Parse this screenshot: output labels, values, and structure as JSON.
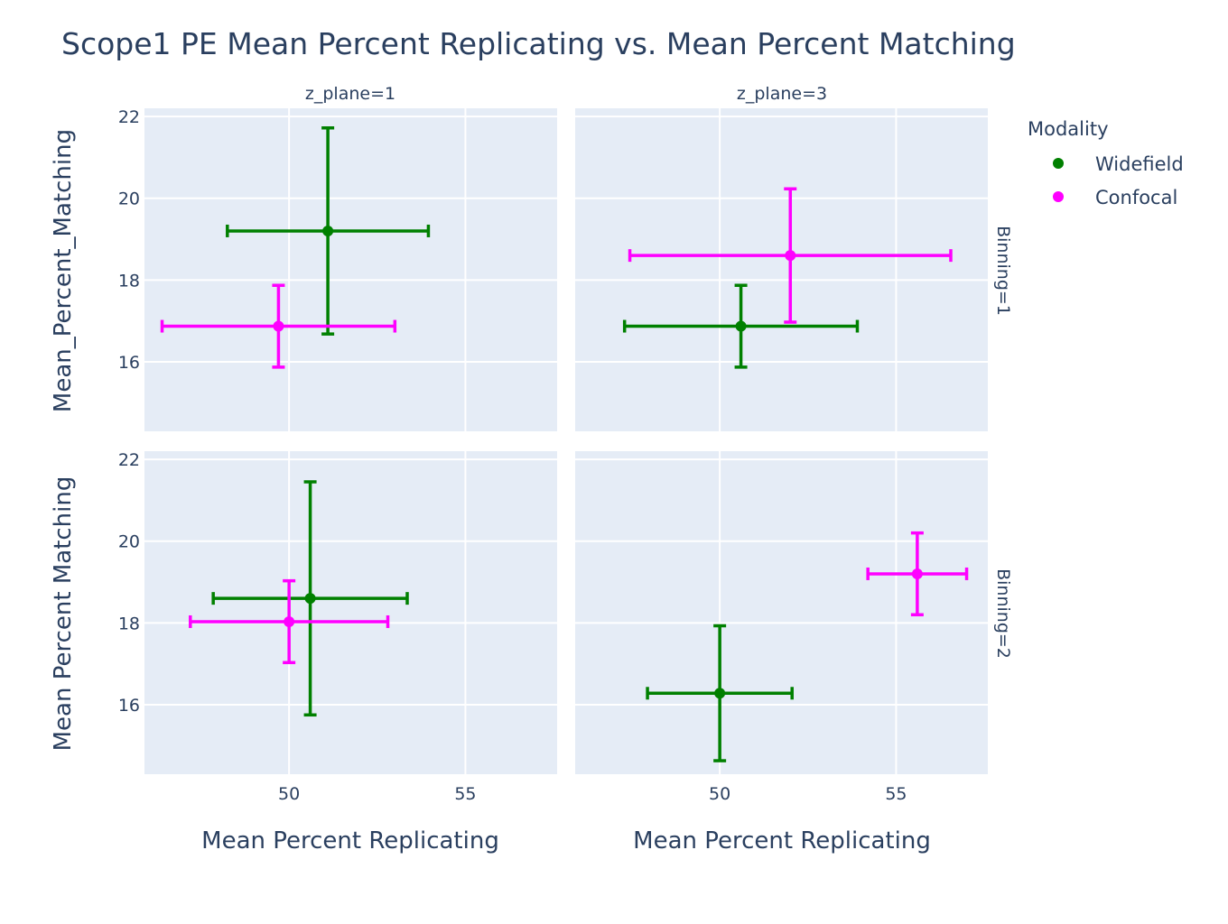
{
  "chart_data": {
    "type": "scatter",
    "title": "Scope1 PE Mean Percent Replicating vs. Mean Percent Matching",
    "xlabel": "Mean Percent Replicating",
    "ylabels": [
      "Mean_Percent_Matching",
      "Mean Percent Matching"
    ],
    "xlim": [
      45.9,
      57.6
    ],
    "ylim": [
      14.3,
      22.2
    ],
    "xticks": [
      50,
      55
    ],
    "yticks": [
      16,
      18,
      20,
      22
    ],
    "grid": true,
    "legend": {
      "title": "Modality",
      "placement": "top-right",
      "entries": [
        {
          "name": "Widefield",
          "color": "#008000"
        },
        {
          "name": "Confocal",
          "color": "#ff00ff"
        }
      ]
    },
    "col_facets": [
      "z_plane=1",
      "z_plane=3"
    ],
    "row_facets": [
      "Binning=1",
      "Binning=2"
    ],
    "panels": [
      {
        "row": 0,
        "col": 0,
        "points": [
          {
            "series": "Widefield",
            "x": 51.1,
            "y": 19.2,
            "x_err": 2.85,
            "y_err": 2.52
          },
          {
            "series": "Confocal",
            "x": 49.7,
            "y": 16.87,
            "x_err": 3.3,
            "y_err": 1.0
          }
        ]
      },
      {
        "row": 0,
        "col": 1,
        "points": [
          {
            "series": "Widefield",
            "x": 50.6,
            "y": 16.87,
            "x_err": 3.3,
            "y_err": 1.0
          },
          {
            "series": "Confocal",
            "x": 52.0,
            "y": 18.6,
            "x_err": 4.55,
            "y_err": 1.63
          }
        ]
      },
      {
        "row": 1,
        "col": 0,
        "points": [
          {
            "series": "Widefield",
            "x": 50.6,
            "y": 18.6,
            "x_err": 2.75,
            "y_err": 2.85
          },
          {
            "series": "Confocal",
            "x": 50.0,
            "y": 18.03,
            "x_err": 2.8,
            "y_err": 1.0
          }
        ]
      },
      {
        "row": 1,
        "col": 1,
        "points": [
          {
            "series": "Widefield",
            "x": 50.0,
            "y": 16.28,
            "x_err": 2.05,
            "y_err": 1.65
          },
          {
            "series": "Confocal",
            "x": 55.6,
            "y": 19.2,
            "x_err": 1.4,
            "y_err": 1.0
          }
        ]
      }
    ]
  }
}
